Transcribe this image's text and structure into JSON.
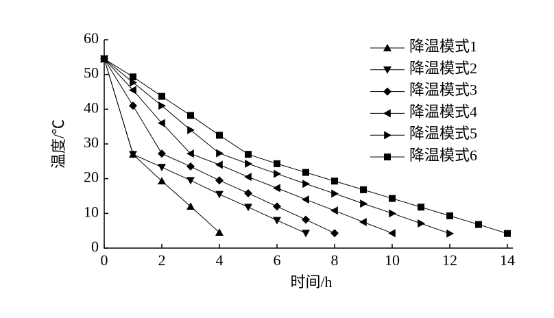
{
  "chart_data": {
    "type": "line",
    "x_label": "时间/h",
    "y_label": "温度/℃",
    "x": [
      0,
      1,
      2,
      3,
      4,
      5,
      6,
      7,
      8,
      9,
      10,
      11,
      12,
      13,
      14
    ],
    "series": [
      {
        "name": "降温模式1",
        "color": "#000000",
        "marker": "triangle-up",
        "values": [
          54.5,
          27,
          19.3,
          12,
          4.5,
          null,
          null,
          null,
          null,
          null,
          null,
          null,
          null,
          null,
          null
        ]
      },
      {
        "name": "降温模式2",
        "color": "#000000",
        "marker": "triangle-down",
        "values": [
          54.5,
          27,
          23.3,
          19.5,
          15.5,
          11.8,
          8,
          4.3,
          null,
          null,
          null,
          null,
          null,
          null,
          null
        ]
      },
      {
        "name": "降温模式3",
        "color": "#000000",
        "marker": "diamond",
        "values": [
          54.5,
          41,
          27.2,
          23.5,
          19.5,
          15.8,
          12,
          8.2,
          4.3,
          null,
          null,
          null,
          null,
          null,
          null
        ]
      },
      {
        "name": "降温模式4",
        "color": "#000000",
        "marker": "triangle-left",
        "values": [
          54.5,
          45.5,
          36,
          27.2,
          24,
          20.5,
          17.3,
          14,
          10.8,
          7.5,
          4.3,
          null,
          null,
          null,
          null
        ]
      },
      {
        "name": "降温模式5",
        "color": "#000000",
        "marker": "triangle-right",
        "values": [
          54.5,
          47.7,
          41,
          34,
          27.3,
          24.3,
          21.4,
          18.5,
          15.7,
          12.8,
          10,
          7.1,
          4.2,
          null,
          null
        ]
      },
      {
        "name": "降温模式6",
        "color": "#000000",
        "marker": "square",
        "values": [
          54.5,
          49.3,
          43.7,
          38.2,
          32.5,
          27,
          24.3,
          21.8,
          19.3,
          16.8,
          14.3,
          11.8,
          9.3,
          6.8,
          4.2
        ]
      }
    ],
    "xlim": [
      0,
      14
    ],
    "xticks": [
      0,
      2,
      4,
      6,
      8,
      10,
      12,
      14
    ],
    "ylim": [
      0,
      60
    ],
    "yticks": [
      0,
      10,
      20,
      30,
      40,
      50,
      60
    ],
    "grid": false,
    "legend": "upper right"
  }
}
